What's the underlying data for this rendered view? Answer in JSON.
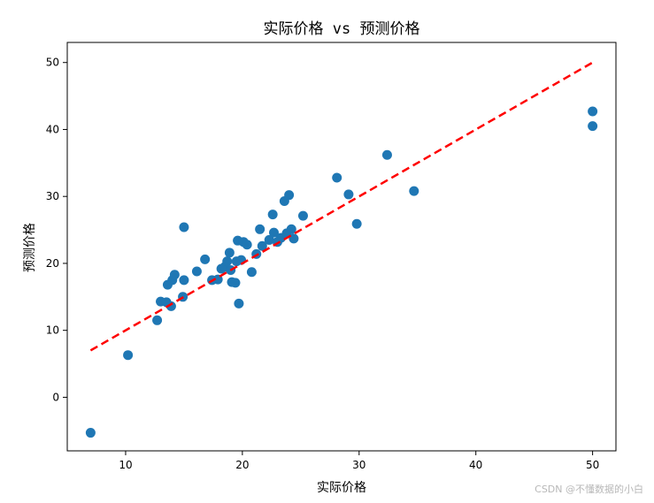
{
  "chart_data": {
    "type": "scatter",
    "title": "实际价格 vs 预测价格",
    "xlabel": "实际价格",
    "ylabel": "预测价格",
    "xlim": [
      5.0,
      52.0
    ],
    "ylim": [
      -8.0,
      53.0
    ],
    "xticks": [
      10,
      20,
      30,
      40,
      50
    ],
    "yticks": [
      0,
      10,
      20,
      30,
      40,
      50
    ],
    "point_color": "#1f77b4",
    "reference_line": {
      "from": [
        7.0,
        7.0
      ],
      "to": [
        50.0,
        50.0
      ],
      "color": "#ff0000",
      "style": "dashed"
    },
    "points": [
      [
        7.0,
        -5.3
      ],
      [
        10.2,
        6.3
      ],
      [
        12.7,
        11.5
      ],
      [
        13.0,
        14.3
      ],
      [
        13.5,
        14.2
      ],
      [
        13.6,
        16.8
      ],
      [
        13.9,
        13.6
      ],
      [
        14.0,
        17.5
      ],
      [
        14.2,
        18.3
      ],
      [
        14.9,
        15.0
      ],
      [
        15.0,
        17.5
      ],
      [
        15.0,
        25.4
      ],
      [
        16.1,
        18.8
      ],
      [
        16.8,
        20.6
      ],
      [
        17.4,
        17.5
      ],
      [
        17.9,
        17.6
      ],
      [
        18.2,
        19.2
      ],
      [
        18.5,
        19.5
      ],
      [
        18.7,
        20.3
      ],
      [
        18.9,
        21.6
      ],
      [
        19.0,
        19.0
      ],
      [
        19.1,
        17.2
      ],
      [
        19.4,
        17.1
      ],
      [
        19.5,
        20.3
      ],
      [
        19.6,
        23.4
      ],
      [
        19.7,
        14.0
      ],
      [
        19.9,
        20.5
      ],
      [
        20.1,
        23.2
      ],
      [
        20.4,
        22.8
      ],
      [
        20.8,
        18.7
      ],
      [
        21.2,
        21.4
      ],
      [
        21.5,
        25.1
      ],
      [
        21.7,
        22.6
      ],
      [
        22.3,
        23.5
      ],
      [
        22.6,
        27.3
      ],
      [
        22.7,
        24.6
      ],
      [
        23.0,
        23.2
      ],
      [
        23.3,
        23.8
      ],
      [
        23.6,
        29.3
      ],
      [
        23.8,
        24.5
      ],
      [
        24.0,
        30.2
      ],
      [
        24.2,
        25.1
      ],
      [
        24.4,
        23.7
      ],
      [
        25.2,
        27.1
      ],
      [
        28.1,
        32.8
      ],
      [
        29.1,
        30.3
      ],
      [
        29.8,
        25.9
      ],
      [
        32.4,
        36.2
      ],
      [
        34.7,
        30.8
      ],
      [
        50.0,
        42.7
      ],
      [
        50.0,
        40.5
      ]
    ]
  },
  "watermark": "CSDN @不懂数据的小白"
}
